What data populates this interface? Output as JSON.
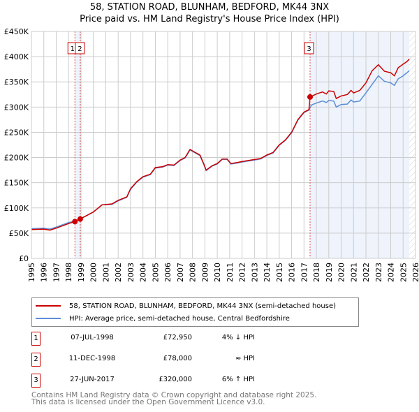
{
  "chart_data": {
    "type": "line",
    "title": "58, STATION ROAD, BLUNHAM, BEDFORD, MK44 3NX",
    "subtitle": "Price paid vs. HM Land Registry's House Price Index (HPI)",
    "xlim": [
      1995,
      2026
    ],
    "ylim": [
      0,
      450000
    ],
    "x_ticks": [
      "1995",
      "1996",
      "1997",
      "1998",
      "1999",
      "2000",
      "2001",
      "2002",
      "2003",
      "2004",
      "2005",
      "2006",
      "2007",
      "2008",
      "2009",
      "2010",
      "2011",
      "2012",
      "2013",
      "2014",
      "2015",
      "2016",
      "2017",
      "2018",
      "2019",
      "2020",
      "2021",
      "2022",
      "2023",
      "2024",
      "2025",
      "2026"
    ],
    "y_ticks": [
      {
        "v": 0,
        "label": "£0"
      },
      {
        "v": 50000,
        "label": "£50K"
      },
      {
        "v": 100000,
        "label": "£100K"
      },
      {
        "v": 150000,
        "label": "£150K"
      },
      {
        "v": 200000,
        "label": "£200K"
      },
      {
        "v": 250000,
        "label": "£250K"
      },
      {
        "v": 300000,
        "label": "£300K"
      },
      {
        "v": 350000,
        "label": "£350K"
      },
      {
        "v": 400000,
        "label": "£400K"
      },
      {
        "v": 450000,
        "label": "£450K"
      }
    ],
    "grid": true,
    "series": [
      {
        "name": "58, STATION ROAD, BLUNHAM, BEDFORD, MK44 3NX (semi-detached house)",
        "color": "#cc0000",
        "points": [
          [
            1995,
            57
          ],
          [
            1996,
            58
          ],
          [
            1996.5,
            56
          ],
          [
            1997,
            60
          ],
          [
            1998,
            69
          ],
          [
            1998.5,
            73
          ],
          [
            1999,
            79
          ],
          [
            2000,
            92
          ],
          [
            2000.7,
            106
          ],
          [
            2001.5,
            108
          ],
          [
            2002,
            115
          ],
          [
            2002.7,
            122
          ],
          [
            2003,
            138
          ],
          [
            2003.5,
            152
          ],
          [
            2004,
            162
          ],
          [
            2004.6,
            167
          ],
          [
            2005,
            180
          ],
          [
            2005.6,
            182
          ],
          [
            2006,
            186
          ],
          [
            2006.5,
            185
          ],
          [
            2007,
            195
          ],
          [
            2007.4,
            200
          ],
          [
            2007.8,
            216
          ],
          [
            2008.3,
            209
          ],
          [
            2008.6,
            205
          ],
          [
            2008.9,
            188
          ],
          [
            2009.1,
            175
          ],
          [
            2009.6,
            184
          ],
          [
            2010,
            188
          ],
          [
            2010.4,
            197
          ],
          [
            2010.8,
            197
          ],
          [
            2011.1,
            188
          ],
          [
            2011.6,
            190
          ],
          [
            2012,
            192
          ],
          [
            2012.5,
            194
          ],
          [
            2013,
            196
          ],
          [
            2013.5,
            198
          ],
          [
            2014,
            205
          ],
          [
            2014.5,
            210
          ],
          [
            2015,
            225
          ],
          [
            2015.5,
            235
          ],
          [
            2016,
            250
          ],
          [
            2016.5,
            275
          ],
          [
            2017,
            290
          ],
          [
            2017.4,
            295
          ],
          [
            2017.49,
            320
          ],
          [
            2018,
            326
          ],
          [
            2018.5,
            330
          ],
          [
            2018.8,
            326
          ],
          [
            2019,
            332
          ],
          [
            2019.4,
            331
          ],
          [
            2019.6,
            317
          ],
          [
            2020,
            322
          ],
          [
            2020.5,
            325
          ],
          [
            2020.8,
            333
          ],
          [
            2021,
            328
          ],
          [
            2021.5,
            333
          ],
          [
            2022,
            348
          ],
          [
            2022.5,
            372
          ],
          [
            2023,
            384
          ],
          [
            2023.5,
            371
          ],
          [
            2024,
            368
          ],
          [
            2024.3,
            362
          ],
          [
            2024.6,
            378
          ],
          [
            2025,
            385
          ],
          [
            2025.3,
            390
          ],
          [
            2025.5,
            395
          ]
        ]
      },
      {
        "name": "HPI: Average price, semi-detached house, Central Bedfordshire",
        "color": "#5b8ed6",
        "points": [
          [
            1995,
            59
          ],
          [
            1996,
            60
          ],
          [
            1996.5,
            58
          ],
          [
            1997,
            62
          ],
          [
            1998,
            71
          ],
          [
            1998.5,
            74
          ],
          [
            1999,
            79
          ],
          [
            2000,
            92
          ],
          [
            2000.7,
            106
          ],
          [
            2001.5,
            107
          ],
          [
            2002,
            114
          ],
          [
            2002.7,
            121
          ],
          [
            2003,
            137
          ],
          [
            2003.5,
            151
          ],
          [
            2004,
            161
          ],
          [
            2004.6,
            166
          ],
          [
            2005,
            179
          ],
          [
            2005.6,
            181
          ],
          [
            2006,
            185
          ],
          [
            2006.5,
            184
          ],
          [
            2007,
            194
          ],
          [
            2007.4,
            199
          ],
          [
            2007.8,
            215
          ],
          [
            2008.3,
            208
          ],
          [
            2008.6,
            204
          ],
          [
            2008.9,
            187
          ],
          [
            2009.1,
            174
          ],
          [
            2009.6,
            183
          ],
          [
            2010,
            187
          ],
          [
            2010.4,
            196
          ],
          [
            2010.8,
            196
          ],
          [
            2011.1,
            187
          ],
          [
            2011.6,
            189
          ],
          [
            2012,
            191
          ],
          [
            2012.5,
            193
          ],
          [
            2013,
            195
          ],
          [
            2013.5,
            197
          ],
          [
            2014,
            204
          ],
          [
            2014.5,
            209
          ],
          [
            2015,
            224
          ],
          [
            2015.5,
            234
          ],
          [
            2016,
            249
          ],
          [
            2016.5,
            274
          ],
          [
            2017,
            289
          ],
          [
            2017.4,
            294
          ],
          [
            2017.6,
            304
          ],
          [
            2018,
            308
          ],
          [
            2018.5,
            312
          ],
          [
            2018.8,
            309
          ],
          [
            2019,
            313
          ],
          [
            2019.4,
            312
          ],
          [
            2019.6,
            300
          ],
          [
            2020,
            305
          ],
          [
            2020.5,
            306
          ],
          [
            2020.8,
            314
          ],
          [
            2021,
            310
          ],
          [
            2021.5,
            312
          ],
          [
            2022,
            328
          ],
          [
            2022.5,
            345
          ],
          [
            2023,
            362
          ],
          [
            2023.5,
            351
          ],
          [
            2024,
            348
          ],
          [
            2024.3,
            343
          ],
          [
            2024.6,
            356
          ],
          [
            2025,
            362
          ],
          [
            2025.5,
            372
          ]
        ]
      }
    ],
    "sales": [
      {
        "id": "1",
        "x": 1998.51,
        "v": 72950
      },
      {
        "id": "2",
        "x": 1998.94,
        "v": 78000
      },
      {
        "id": "3",
        "x": 2017.49,
        "v": 320000
      }
    ],
    "shaded_from": 2017.49,
    "hatched_from": 2025.5
  },
  "legend": {
    "property": "58, STATION ROAD, BLUNHAM, BEDFORD, MK44 3NX (semi-detached house)",
    "hpi": "HPI: Average price, semi-detached house, Central Bedfordshire"
  },
  "table": [
    {
      "num": "1",
      "date": "07-JUL-1998",
      "price": "£72,950",
      "rel": "4% ↓ HPI"
    },
    {
      "num": "2",
      "date": "11-DEC-1998",
      "price": "£78,000",
      "rel": "≈ HPI"
    },
    {
      "num": "3",
      "date": "27-JUN-2017",
      "price": "£320,000",
      "rel": "6% ↑ HPI"
    }
  ],
  "footer": {
    "line1": "Contains HM Land Registry data © Crown copyright and database right 2025.",
    "line2": "This data is licensed under the Open Government Licence v3.0."
  }
}
